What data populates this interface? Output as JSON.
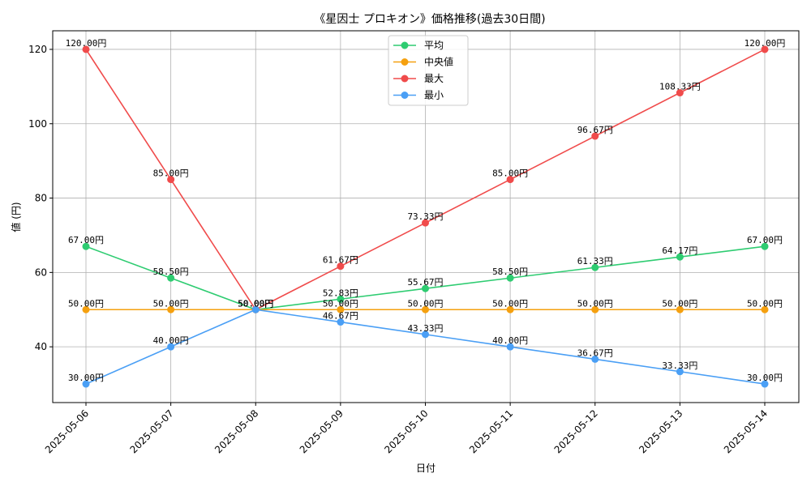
{
  "chart_data": {
    "type": "line",
    "title": "《星因士 プロキオン》価格推移(過去30日間)",
    "xlabel": "日付",
    "ylabel": "値 (円)",
    "categories": [
      "2025-05-06",
      "2025-05-07",
      "2025-05-08",
      "2025-05-09",
      "2025-05-10",
      "2025-05-11",
      "2025-05-12",
      "2025-05-13",
      "2025-05-14"
    ],
    "ylim": [
      25,
      125
    ],
    "yticks": [
      "40",
      "60",
      "80",
      "100",
      "120"
    ],
    "grid": true,
    "legend_position": "top-center",
    "value_suffix": "円",
    "series": [
      {
        "name": "平均",
        "color": "#2ecc71",
        "values": [
          67.0,
          58.5,
          50.0,
          52.83,
          55.67,
          58.5,
          61.33,
          64.17,
          67.0
        ],
        "labels": [
          "67.00円",
          "58.50円",
          "50.00円",
          "52.83円",
          "55.67円",
          "58.50円",
          "61.33円",
          "64.17円",
          "67.00円"
        ]
      },
      {
        "name": "中央値",
        "color": "#f5a00f",
        "values": [
          50.0,
          50.0,
          50.0,
          50.0,
          50.0,
          50.0,
          50.0,
          50.0,
          50.0
        ],
        "labels": [
          "50.00円",
          "50.00円",
          "50.00円",
          "50.00円",
          "50.00円",
          "50.00円",
          "50.00円",
          "50.00円",
          "50.00円"
        ]
      },
      {
        "name": "最大",
        "color": "#f04b4b",
        "values": [
          120.0,
          85.0,
          50.0,
          61.67,
          73.33,
          85.0,
          96.67,
          108.33,
          120.0
        ],
        "labels": [
          "120.00円",
          "85.00円",
          "50.00円",
          "61.67円",
          "73.33円",
          "85.00円",
          "96.67円",
          "108.33円",
          "120.00円"
        ]
      },
      {
        "name": "最小",
        "color": "#4a9ff5",
        "values": [
          30.0,
          40.0,
          50.0,
          46.67,
          43.33,
          40.0,
          36.67,
          33.33,
          30.0
        ],
        "labels": [
          "30.00円",
          "40.00円",
          "50.00円",
          "46.67円",
          "43.33円",
          "40.00円",
          "36.67円",
          "33.33円",
          "30.00円"
        ]
      }
    ]
  }
}
